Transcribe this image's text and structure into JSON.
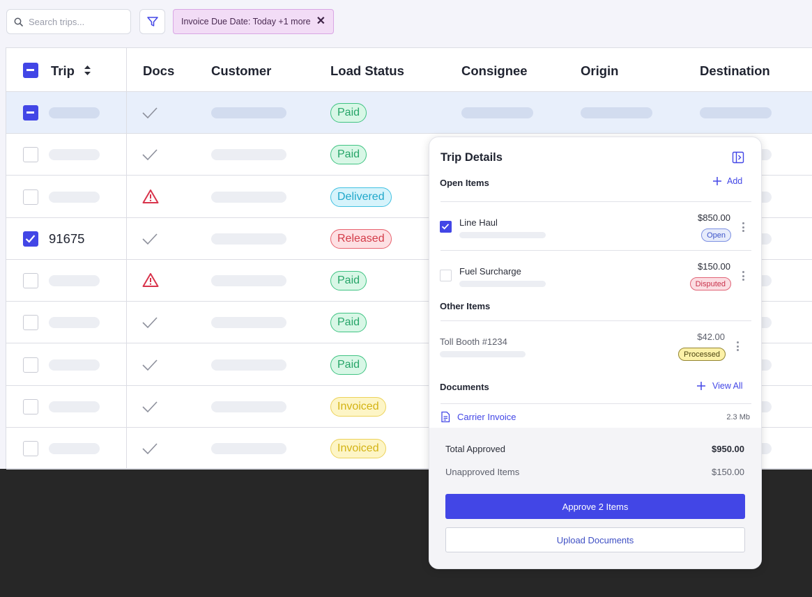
{
  "search": {
    "placeholder": "Search trips..."
  },
  "filter_chip": {
    "label": "Invoice Due Date: Today +1 more"
  },
  "table": {
    "headers": {
      "trip": "Trip",
      "docs": "Docs",
      "customer": "Customer",
      "load_status": "Load Status",
      "consignee": "Consignee",
      "origin": "Origin",
      "destination": "Destination"
    },
    "rows": [
      {
        "selected": true,
        "checkbox": "partial",
        "trip": "",
        "docs": "check",
        "status": "Paid",
        "status_kind": "paid"
      },
      {
        "selected": false,
        "checkbox": "off",
        "trip": "",
        "docs": "check",
        "status": "Paid",
        "status_kind": "paid"
      },
      {
        "selected": false,
        "checkbox": "off",
        "trip": "",
        "docs": "warning",
        "status": "Delivered",
        "status_kind": "delivered"
      },
      {
        "selected": false,
        "checkbox": "on",
        "trip": "91675",
        "docs": "check",
        "status": "Released",
        "status_kind": "released"
      },
      {
        "selected": false,
        "checkbox": "off",
        "trip": "",
        "docs": "warning",
        "status": "Paid",
        "status_kind": "paid"
      },
      {
        "selected": false,
        "checkbox": "off",
        "trip": "",
        "docs": "check",
        "status": "Paid",
        "status_kind": "paid"
      },
      {
        "selected": false,
        "checkbox": "off",
        "trip": "",
        "docs": "check",
        "status": "Paid",
        "status_kind": "paid"
      },
      {
        "selected": false,
        "checkbox": "off",
        "trip": "",
        "docs": "check",
        "status": "Invoiced",
        "status_kind": "invoiced"
      },
      {
        "selected": false,
        "checkbox": "off",
        "trip": "",
        "docs": "check",
        "status": "Invoiced",
        "status_kind": "invoiced"
      }
    ]
  },
  "panel": {
    "title": "Trip Details",
    "open_items": {
      "title": "Open Items",
      "add_label": "Add",
      "items": [
        {
          "name": "Line Haul",
          "amount": "$850.00",
          "badge": "Open",
          "checked": true
        },
        {
          "name": "Fuel Surcharge",
          "amount": "$150.00",
          "badge": "Disputed",
          "checked": false
        }
      ]
    },
    "other_items": {
      "title": "Other Items",
      "items": [
        {
          "name": "Toll Booth #1234",
          "amount": "$42.00",
          "badge": "Processed"
        }
      ]
    },
    "documents": {
      "title": "Documents",
      "view_all_label": "View All",
      "items": [
        {
          "name": "Carrier Invoice",
          "size": "2.3 Mb"
        }
      ]
    },
    "summary": {
      "total_label": "Total Approved",
      "total_value": "$950.00",
      "unapproved_label": "Unapproved Items",
      "unapproved_value": "$150.00"
    },
    "approve_label": "Approve 2 Items",
    "upload_label": "Upload Documents"
  },
  "colors": {
    "accent": "#4246e6",
    "chip_bg": "#f2dcf6",
    "dark_bg": "#272727"
  }
}
